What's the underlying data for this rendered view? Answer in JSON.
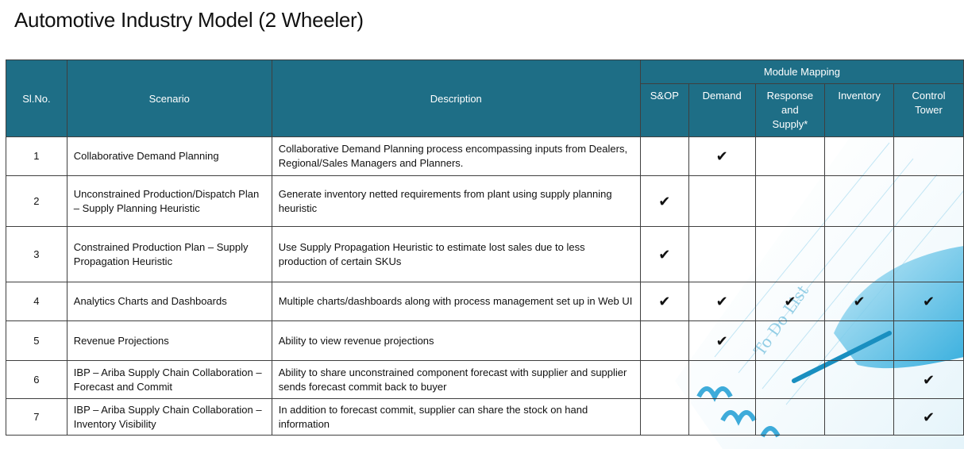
{
  "title": "Automotive Industry Model (2 Wheeler)",
  "headers": {
    "slno": "Sl.No.",
    "scenario": "Scenario",
    "description": "Description",
    "module_mapping": "Module Mapping",
    "modules": [
      "S&OP",
      "Demand",
      "Response and Supply*",
      "Inventory",
      "Control Tower"
    ]
  },
  "check_symbol": "✔",
  "rows": [
    {
      "num": "1",
      "scenario": "Collaborative Demand Planning",
      "description": "Collaborative Demand Planning process encompassing inputs from Dealers, Regional/Sales Managers and Planners.",
      "checks": [
        false,
        true,
        false,
        false,
        false
      ]
    },
    {
      "num": "2",
      "scenario": "Unconstrained Production/Dispatch Plan – Supply Planning Heuristic",
      "description": "Generate inventory netted requirements from plant using supply planning heuristic",
      "checks": [
        true,
        false,
        false,
        false,
        false
      ]
    },
    {
      "num": "3",
      "scenario": "Constrained Production Plan – Supply Propagation Heuristic",
      "description": "Use Supply Propagation Heuristic to estimate lost sales due to less production of certain SKUs",
      "checks": [
        true,
        false,
        false,
        false,
        false
      ]
    },
    {
      "num": "4",
      "scenario": "Analytics Charts and Dashboards",
      "description": "Multiple charts/dashboards along with process management set up in Web UI",
      "checks": [
        true,
        true,
        true,
        true,
        true
      ]
    },
    {
      "num": "5",
      "scenario": "Revenue Projections",
      "description": "Ability to view revenue projections",
      "checks": [
        false,
        true,
        false,
        false,
        false
      ]
    },
    {
      "num": "6",
      "scenario": "IBP – Ariba Supply Chain Collaboration – Forecast and Commit",
      "description": "Ability to share unconstrained component forecast with supplier and supplier sends forecast commit back to buyer",
      "checks": [
        false,
        false,
        false,
        false,
        true
      ]
    },
    {
      "num": "7",
      "scenario": "IBP – Ariba Supply Chain Collaboration – Inventory Visibility",
      "description": "In addition to forecast commit, supplier can share the stock on hand information",
      "checks": [
        false,
        false,
        false,
        false,
        true
      ]
    }
  ],
  "background_art": {
    "handwriting": "To Do List",
    "accent": "#29a9d6"
  }
}
